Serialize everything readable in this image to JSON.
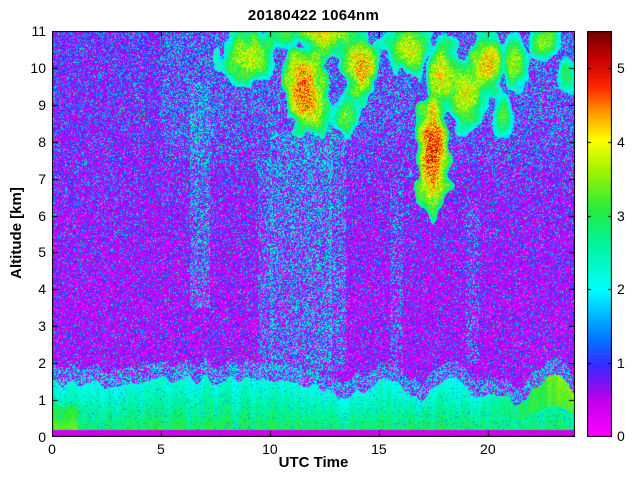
{
  "chart_data": {
    "type": "heatmap",
    "title": "20180422 1064nm",
    "xlabel": "UTC Time",
    "ylabel": "Altitude [km]",
    "xlim": [
      0,
      24
    ],
    "ylim": [
      0,
      11
    ],
    "x_ticks": [
      0,
      5,
      10,
      15,
      20
    ],
    "y_ticks": [
      0,
      1,
      2,
      3,
      4,
      5,
      6,
      7,
      8,
      9,
      10,
      11
    ],
    "colorbar": {
      "range": [
        0,
        5.5
      ],
      "ticks": [
        0,
        1,
        2,
        3,
        4,
        5
      ]
    },
    "render_params": {
      "seed": 42,
      "colormap": [
        [
          0.0,
          255,
          0,
          255
        ],
        [
          0.09,
          190,
          0,
          235
        ],
        [
          0.17,
          60,
          40,
          255
        ],
        [
          0.24,
          0,
          120,
          255
        ],
        [
          0.36,
          0,
          255,
          255
        ],
        [
          0.47,
          0,
          245,
          160
        ],
        [
          0.56,
          40,
          235,
          60
        ],
        [
          0.66,
          170,
          245,
          0
        ],
        [
          0.73,
          255,
          255,
          0
        ],
        [
          0.8,
          255,
          150,
          0
        ],
        [
          0.86,
          255,
          40,
          0
        ],
        [
          0.93,
          200,
          0,
          0
        ],
        [
          1.0,
          110,
          0,
          0
        ]
      ],
      "background": {
        "v_min": 0.1,
        "v_scale": 1.35,
        "speckle_p": 0.05,
        "high_speckle_p": 0.17,
        "green_speckle_p": 0.01
      },
      "aerosol_layer": {
        "base_top": 1.3,
        "top_var": 0.35,
        "v_base": 2.0,
        "v_grad": 1.0,
        "yellow_after": 19.3,
        "ground_strip": 0.2
      },
      "clouds": [
        [
          9.0,
          10.3,
          1.4,
          0.9,
          4.3
        ],
        [
          11.6,
          9.4,
          1.1,
          1.4,
          5.2
        ],
        [
          12.5,
          10.9,
          1.7,
          0.6,
          4.6
        ],
        [
          10.7,
          10.9,
          1.2,
          0.4,
          3.6
        ],
        [
          14.2,
          10.0,
          0.9,
          0.9,
          5.0
        ],
        [
          13.5,
          8.7,
          0.6,
          0.6,
          4.0
        ],
        [
          16.4,
          10.5,
          1.2,
          0.7,
          4.4
        ],
        [
          17.5,
          7.8,
          0.9,
          1.7,
          5.5
        ],
        [
          17.9,
          9.8,
          1.0,
          1.0,
          4.6
        ],
        [
          19.0,
          9.3,
          1.1,
          1.1,
          4.5
        ],
        [
          20.0,
          10.1,
          1.0,
          0.9,
          4.8
        ],
        [
          21.2,
          10.2,
          0.8,
          0.8,
          4.2
        ],
        [
          20.7,
          8.7,
          0.5,
          0.6,
          3.8
        ],
        [
          22.6,
          10.7,
          0.9,
          0.5,
          4.1
        ],
        [
          23.6,
          9.8,
          0.5,
          0.6,
          3.4
        ]
      ],
      "streaks": [
        {
          "t": 6.8,
          "w": 0.45,
          "z0": 3.5,
          "z1": 9.6,
          "p": 0.3,
          "v0": 1.7,
          "v1": 2.7
        },
        {
          "t": 9.8,
          "w": 0.35,
          "z0": 1.8,
          "z1": 7.5,
          "p": 0.25,
          "v0": 1.6,
          "v1": 2.5
        },
        {
          "t": 10.5,
          "w": 0.5,
          "z0": 1.8,
          "z1": 8.3,
          "p": 0.3,
          "v0": 1.6,
          "v1": 2.6
        },
        {
          "t": 11.4,
          "w": 0.4,
          "z0": 1.8,
          "z1": 8.6,
          "p": 0.3,
          "v0": 1.6,
          "v1": 2.6
        },
        {
          "t": 12.3,
          "w": 0.55,
          "z0": 1.8,
          "z1": 8.8,
          "p": 0.32,
          "v0": 1.7,
          "v1": 2.7
        },
        {
          "t": 13.1,
          "w": 0.4,
          "z0": 1.8,
          "z1": 8.2,
          "p": 0.28,
          "v0": 1.6,
          "v1": 2.6
        },
        {
          "t": 15.8,
          "w": 0.3,
          "z0": 2.0,
          "z1": 7.0,
          "p": 0.2,
          "v0": 1.6,
          "v1": 2.4
        },
        {
          "t": 19.3,
          "w": 0.3,
          "z0": 2.0,
          "z1": 6.5,
          "p": 0.18,
          "v0": 1.6,
          "v1": 2.4
        }
      ]
    }
  }
}
